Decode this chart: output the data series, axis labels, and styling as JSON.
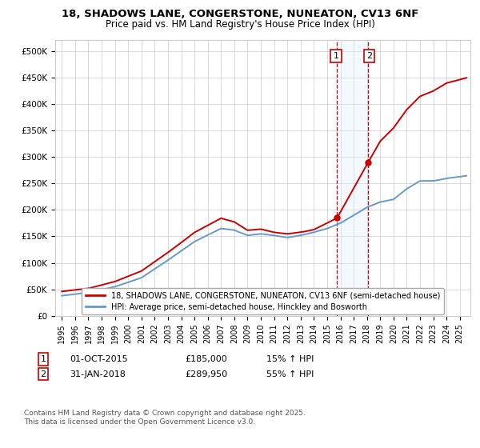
{
  "title1": "18, SHADOWS LANE, CONGERSTONE, NUNEATON, CV13 6NF",
  "title2": "Price paid vs. HM Land Registry's House Price Index (HPI)",
  "legend1": "18, SHADOWS LANE, CONGERSTONE, NUNEATON, CV13 6NF (semi-detached house)",
  "legend2": "HPI: Average price, semi-detached house, Hinckley and Bosworth",
  "purchase1_date": "01-OCT-2015",
  "purchase1_price": 185000,
  "purchase1_hpi": "15% ↑ HPI",
  "purchase2_date": "31-JAN-2018",
  "purchase2_price": 289950,
  "purchase2_hpi": "55% ↑ HPI",
  "footnote": "Contains HM Land Registry data © Crown copyright and database right 2025.\nThis data is licensed under the Open Government Licence v3.0.",
  "line_color_property": "#cc0000",
  "line_color_hpi": "#6699cc",
  "shade_color": "#ddeeff",
  "marker_color_property": "#cc0000",
  "ylim_max": 520000,
  "ylim_min": 0,
  "yticks": [
    0,
    50000,
    100000,
    150000,
    200000,
    250000,
    300000,
    350000,
    400000,
    450000,
    500000
  ],
  "ytick_labels": [
    "£0",
    "£50K",
    "£100K",
    "£150K",
    "£200K",
    "£250K",
    "£300K",
    "£350K",
    "£400K",
    "£450K",
    "£500K"
  ],
  "purchase1_year": 2015.75,
  "purchase2_year": 2018.083,
  "hpi_x": [
    1995,
    1997,
    1999,
    2001,
    2003,
    2005,
    2007,
    2008,
    2009,
    2010,
    2011,
    2012,
    2013,
    2014,
    2015,
    2016,
    2017,
    2018,
    2019,
    2020,
    2021,
    2022,
    2023,
    2024,
    2025.5
  ],
  "hpi_y": [
    38000,
    44000,
    55000,
    72000,
    105000,
    140000,
    165000,
    162000,
    152000,
    155000,
    152000,
    148000,
    152000,
    158000,
    165000,
    175000,
    190000,
    205000,
    215000,
    220000,
    240000,
    255000,
    255000,
    260000,
    265000
  ],
  "prop_x": [
    1995,
    1997,
    1999,
    2001,
    2003,
    2005,
    2007,
    2008,
    2009,
    2010,
    2011,
    2012,
    2013,
    2014,
    2015.75,
    2018.083,
    2019,
    2020,
    2021,
    2022,
    2023,
    2024,
    2025.5
  ],
  "prop_y": [
    46000,
    52000,
    65000,
    85000,
    120000,
    158000,
    185000,
    178000,
    162000,
    164000,
    158000,
    155000,
    158000,
    163000,
    185000,
    289950,
    330000,
    355000,
    390000,
    415000,
    425000,
    440000,
    450000
  ]
}
